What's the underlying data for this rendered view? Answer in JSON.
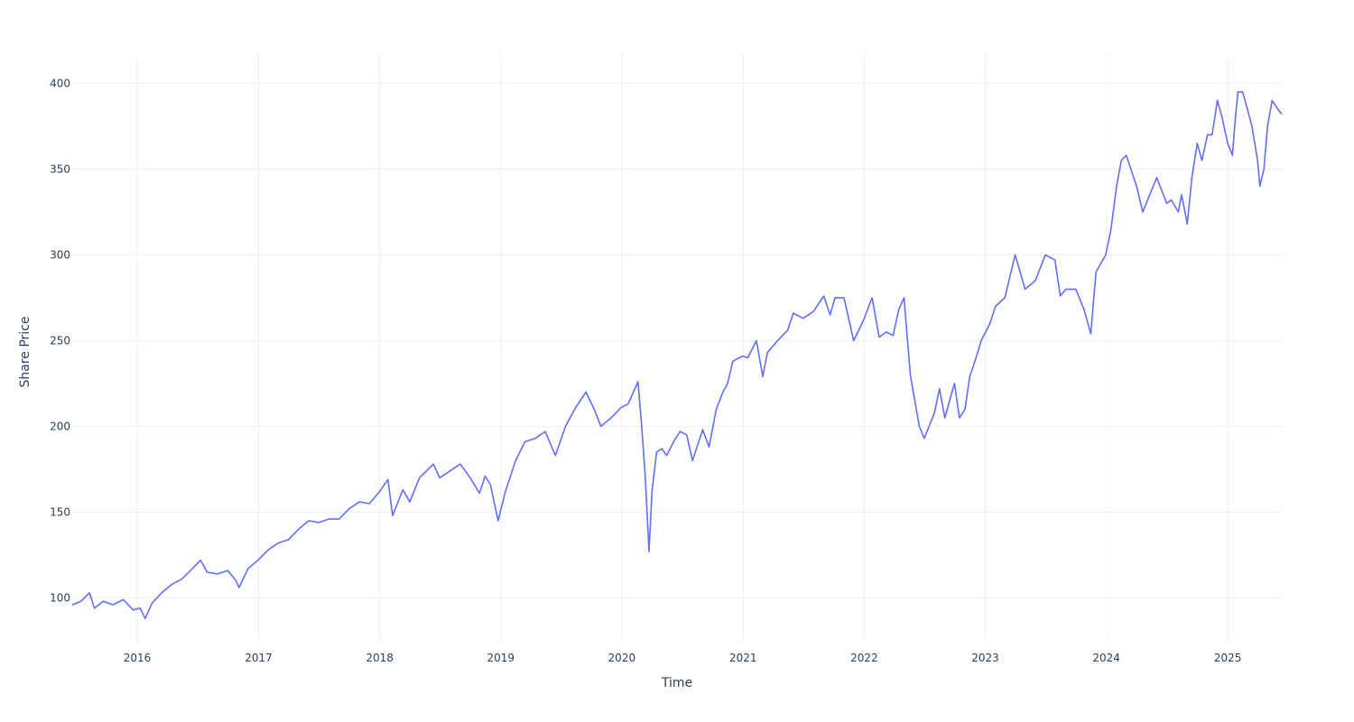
{
  "chart_data": {
    "type": "line",
    "title": "",
    "xlabel": "Time",
    "ylabel": "Share Price",
    "xlim": [
      "2015-06-19",
      "2025-06-13"
    ],
    "ylim": [
      75,
      417
    ],
    "grid": true,
    "legend": "none",
    "x_tick_labels": [
      "2016",
      "2017",
      "2018",
      "2019",
      "2020",
      "2021",
      "2022",
      "2023",
      "2024",
      "2025"
    ],
    "y_tick_labels": [
      "100",
      "150",
      "200",
      "250",
      "300",
      "350",
      "400"
    ],
    "series": [
      {
        "color": "#636efa",
        "x": [
          "2015-06-19",
          "2015-07-15",
          "2015-08-10",
          "2015-08-25",
          "2015-09-20",
          "2015-10-20",
          "2015-11-20",
          "2015-12-20",
          "2016-01-10",
          "2016-01-25",
          "2016-02-15",
          "2016-03-15",
          "2016-04-15",
          "2016-05-15",
          "2016-06-20",
          "2016-07-10",
          "2016-07-30",
          "2016-08-30",
          "2016-09-30",
          "2016-10-25",
          "2016-11-03",
          "2016-11-30",
          "2016-12-30",
          "2017-01-30",
          "2017-03-01",
          "2017-04-01",
          "2017-05-01",
          "2017-06-01",
          "2017-07-01",
          "2017-08-01",
          "2017-09-01",
          "2017-10-01",
          "2017-11-01",
          "2017-12-01",
          "2018-01-01",
          "2018-01-26",
          "2018-02-09",
          "2018-03-12",
          "2018-04-02",
          "2018-05-01",
          "2018-06-12",
          "2018-07-01",
          "2018-08-01",
          "2018-09-01",
          "2018-10-01",
          "2018-10-29",
          "2018-11-15",
          "2018-12-01",
          "2018-12-24",
          "2019-01-15",
          "2019-02-15",
          "2019-03-15",
          "2019-04-15",
          "2019-05-15",
          "2019-06-15",
          "2019-07-15",
          "2019-08-15",
          "2019-09-15",
          "2019-10-10",
          "2019-10-30",
          "2019-11-30",
          "2019-12-30",
          "2020-01-20",
          "2020-02-19",
          "2020-03-01",
          "2020-03-12",
          "2020-03-23",
          "2020-04-01",
          "2020-04-15",
          "2020-05-01",
          "2020-05-15",
          "2020-06-08",
          "2020-06-25",
          "2020-07-15",
          "2020-08-01",
          "2020-09-01",
          "2020-09-20",
          "2020-10-12",
          "2020-11-01",
          "2020-11-15",
          "2020-12-01",
          "2020-12-30",
          "2021-01-15",
          "2021-02-10",
          "2021-03-01",
          "2021-03-15",
          "2021-04-15",
          "2021-05-15",
          "2021-06-01",
          "2021-07-01",
          "2021-08-01",
          "2021-09-01",
          "2021-09-20",
          "2021-10-05",
          "2021-11-01",
          "2021-11-30",
          "2021-12-30",
          "2022-01-25",
          "2022-02-15",
          "2022-03-08",
          "2022-03-29",
          "2022-04-15",
          "2022-05-01",
          "2022-05-20",
          "2022-06-16",
          "2022-07-01",
          "2022-08-01",
          "2022-08-16",
          "2022-09-01",
          "2022-09-30",
          "2022-10-15",
          "2022-11-01",
          "2022-11-15",
          "2022-12-01",
          "2022-12-20",
          "2023-01-15",
          "2023-02-01",
          "2023-03-01",
          "2023-04-01",
          "2023-05-01",
          "2023-06-01",
          "2023-07-01",
          "2023-07-30",
          "2023-08-15",
          "2023-09-01",
          "2023-10-01",
          "2023-10-26",
          "2023-11-15",
          "2023-12-01",
          "2023-12-30",
          "2024-01-15",
          "2024-02-01",
          "2024-02-15",
          "2024-03-01",
          "2024-03-15",
          "2024-04-01",
          "2024-04-20",
          "2024-05-15",
          "2024-06-01",
          "2024-07-01",
          "2024-07-15",
          "2024-08-05",
          "2024-08-15",
          "2024-09-01",
          "2024-09-15",
          "2024-10-01",
          "2024-10-15",
          "2024-11-01",
          "2024-11-15",
          "2024-12-01",
          "2024-12-15",
          "2025-01-01",
          "2025-01-15",
          "2025-01-24",
          "2025-02-01",
          "2025-02-15",
          "2025-03-01",
          "2025-03-15",
          "2025-04-01",
          "2025-04-08",
          "2025-04-20",
          "2025-05-01",
          "2025-05-15",
          "2025-06-01",
          "2025-06-13"
        ],
        "y": [
          96,
          98,
          103,
          94,
          98,
          96,
          99,
          93,
          94,
          88,
          97,
          103,
          108,
          111,
          118,
          122,
          115,
          114,
          116,
          110,
          106,
          117,
          122,
          128,
          132,
          134,
          140,
          145,
          144,
          146,
          146,
          152,
          156,
          155,
          162,
          169,
          148,
          163,
          156,
          170,
          178,
          170,
          174,
          178,
          170,
          161,
          171,
          166,
          145,
          162,
          180,
          191,
          193,
          197,
          183,
          200,
          211,
          220,
          210,
          200,
          205,
          211,
          213,
          226,
          200,
          170,
          127,
          162,
          185,
          187,
          183,
          192,
          197,
          195,
          180,
          198,
          188,
          210,
          220,
          225,
          238,
          241,
          240,
          250,
          229,
          243,
          250,
          256,
          266,
          263,
          267,
          276,
          265,
          275,
          275,
          250,
          262,
          275,
          252,
          255,
          253,
          268,
          275,
          230,
          200,
          193,
          208,
          222,
          205,
          225,
          205,
          210,
          229,
          238,
          250,
          260,
          270,
          275,
          300,
          280,
          285,
          300,
          297,
          276,
          280,
          280,
          268,
          254,
          290,
          300,
          315,
          340,
          355,
          358,
          350,
          340,
          325,
          337,
          345,
          330,
          332,
          325,
          335,
          318,
          345,
          365,
          355,
          370,
          370,
          390,
          380,
          365,
          358,
          380,
          395,
          395,
          385,
          375,
          355,
          340,
          350,
          375,
          390,
          385,
          382
        ]
      }
    ]
  }
}
